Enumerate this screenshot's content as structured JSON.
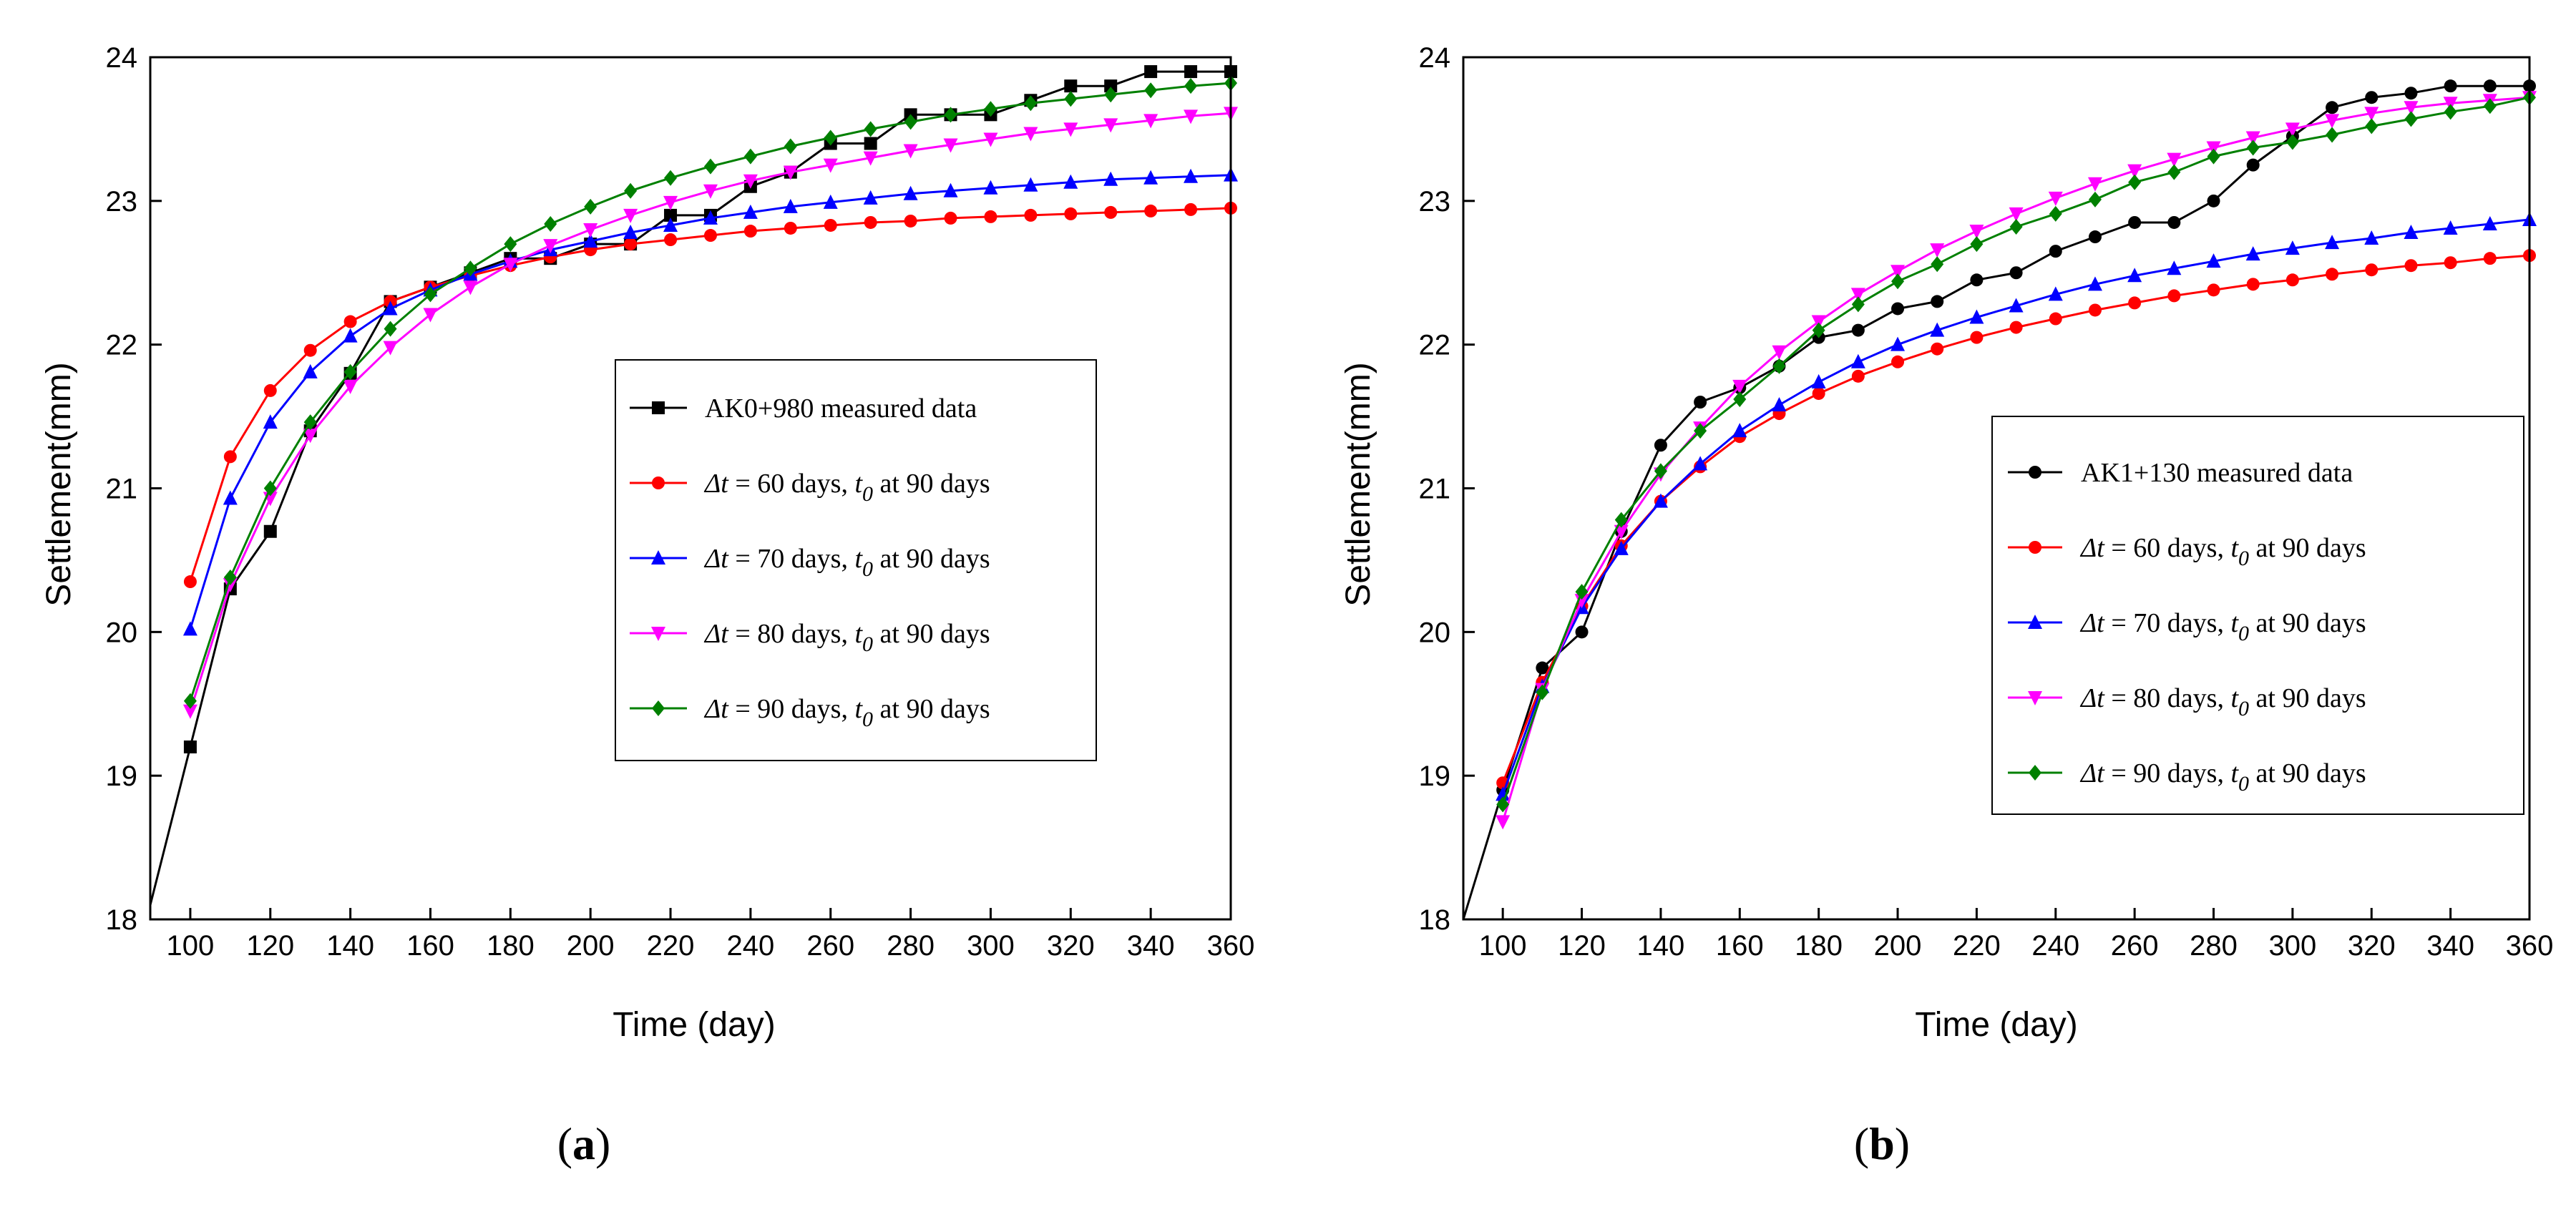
{
  "colors": {
    "measured": "#000000",
    "dt60": "#ff0000",
    "dt70": "#0000ff",
    "dt80": "#ff00ff",
    "dt90": "#008000"
  },
  "chart_data": [
    {
      "type": "line",
      "panel_label": "a",
      "xlabel": "Time (day)",
      "ylabel": "Settlement(mm)",
      "xlim": [
        90,
        360
      ],
      "ylim": [
        18,
        24
      ],
      "xticks": [
        100,
        120,
        140,
        160,
        180,
        200,
        220,
        240,
        260,
        280,
        300,
        320,
        340,
        360
      ],
      "yticks": [
        18,
        19,
        20,
        21,
        22,
        23,
        24
      ],
      "legend": {
        "placement": "center-right",
        "entries": [
          {
            "key": "measured",
            "prefix": "",
            "text": "AK0+980 measured data"
          },
          {
            "key": "dt60",
            "prefix": "Δt",
            "text": " = 60 days, ",
            "t0": "t",
            "t0sub": "0",
            "tail": " at 90 days"
          },
          {
            "key": "dt70",
            "prefix": "Δt",
            "text": "  = 70 days, ",
            "t0": "t",
            "t0sub": "0",
            "tail": " at 90 days"
          },
          {
            "key": "dt80",
            "prefix": "Δt",
            "text": "  = 80 days, ",
            "t0": "t",
            "t0sub": "0",
            "tail": " at 90 days"
          },
          {
            "key": "dt90",
            "prefix": "Δt",
            "text": "  = 90 days, ",
            "t0": "t",
            "t0sub": "0",
            "tail": " at 90 days"
          }
        ]
      },
      "series": [
        {
          "key": "measured",
          "name": "AK0+980 measured data",
          "marker": "square",
          "x": [
            90,
            100,
            110,
            120,
            130,
            140,
            150,
            160,
            170,
            180,
            190,
            200,
            210,
            220,
            230,
            240,
            250,
            260,
            270,
            280,
            290,
            300,
            310,
            320,
            330,
            340,
            350,
            360
          ],
          "y": [
            18.1,
            19.2,
            20.3,
            20.7,
            21.4,
            21.8,
            22.3,
            22.4,
            22.5,
            22.6,
            22.6,
            22.7,
            22.7,
            22.9,
            22.9,
            23.1,
            23.2,
            23.4,
            23.4,
            23.6,
            23.6,
            23.6,
            23.7,
            23.8,
            23.8,
            23.9,
            23.9,
            23.9
          ],
          "marker_skip_first": true
        },
        {
          "key": "dt60",
          "name": "Δt = 60 days, t0 at 90 days",
          "marker": "circle",
          "x": [
            100,
            110,
            120,
            130,
            140,
            150,
            160,
            170,
            180,
            190,
            200,
            210,
            220,
            230,
            240,
            250,
            260,
            270,
            280,
            290,
            300,
            310,
            320,
            330,
            340,
            350,
            360
          ],
          "y": [
            20.35,
            21.22,
            21.68,
            21.96,
            22.16,
            22.3,
            22.4,
            22.48,
            22.55,
            22.61,
            22.66,
            22.7,
            22.73,
            22.76,
            22.79,
            22.81,
            22.83,
            22.85,
            22.86,
            22.88,
            22.89,
            22.9,
            22.91,
            22.92,
            22.93,
            22.94,
            22.95
          ]
        },
        {
          "key": "dt70",
          "name": "Δt = 70 days, t0 at 90 days",
          "marker": "triangle-up",
          "x": [
            100,
            110,
            120,
            130,
            140,
            150,
            160,
            170,
            180,
            190,
            200,
            210,
            220,
            230,
            240,
            250,
            260,
            270,
            280,
            290,
            300,
            310,
            320,
            330,
            340,
            350,
            360
          ],
          "y": [
            20.02,
            20.93,
            21.46,
            21.81,
            22.06,
            22.25,
            22.38,
            22.49,
            22.58,
            22.66,
            22.72,
            22.78,
            22.83,
            22.88,
            22.92,
            22.96,
            22.99,
            23.02,
            23.05,
            23.07,
            23.09,
            23.11,
            23.13,
            23.15,
            23.16,
            23.17,
            23.18
          ]
        },
        {
          "key": "dt80",
          "name": "Δt = 80 days, t0 at 90 days",
          "marker": "triangle-down",
          "x": [
            100,
            110,
            120,
            130,
            140,
            150,
            160,
            170,
            180,
            190,
            200,
            210,
            220,
            230,
            240,
            250,
            260,
            270,
            280,
            290,
            300,
            310,
            320,
            330,
            340,
            350,
            360
          ],
          "y": [
            19.45,
            20.33,
            20.93,
            21.37,
            21.71,
            21.98,
            22.21,
            22.4,
            22.56,
            22.69,
            22.8,
            22.9,
            22.99,
            23.07,
            23.14,
            23.2,
            23.25,
            23.3,
            23.35,
            23.39,
            23.43,
            23.47,
            23.5,
            23.53,
            23.56,
            23.59,
            23.61
          ]
        },
        {
          "key": "dt90",
          "name": "Δt = 90 days, t0 at 90 days",
          "marker": "diamond",
          "x": [
            100,
            110,
            120,
            130,
            140,
            150,
            160,
            170,
            180,
            190,
            200,
            210,
            220,
            230,
            240,
            250,
            260,
            270,
            280,
            290,
            300,
            310,
            320,
            330,
            340,
            350,
            360
          ],
          "y": [
            19.52,
            20.38,
            21.0,
            21.46,
            21.81,
            22.11,
            22.35,
            22.53,
            22.7,
            22.84,
            22.96,
            23.07,
            23.16,
            23.24,
            23.31,
            23.38,
            23.44,
            23.5,
            23.55,
            23.6,
            23.64,
            23.68,
            23.71,
            23.74,
            23.77,
            23.8,
            23.82
          ]
        }
      ]
    },
    {
      "type": "line",
      "panel_label": "b",
      "xlabel": "Time (day)",
      "ylabel": "Settlement(mm)",
      "xlim": [
        90,
        360
      ],
      "ylim": [
        18,
        24
      ],
      "xticks": [
        100,
        120,
        140,
        160,
        180,
        200,
        220,
        240,
        260,
        280,
        300,
        320,
        340,
        360
      ],
      "yticks": [
        18,
        19,
        20,
        21,
        22,
        23,
        24
      ],
      "legend": {
        "placement": "center-right",
        "entries": [
          {
            "key": "measured",
            "prefix": "",
            "text": "AK1+130 measured data"
          },
          {
            "key": "dt60",
            "prefix": "Δt",
            "text": " = 60 days, ",
            "t0": "t",
            "t0sub": "0",
            "tail": " at 90 days"
          },
          {
            "key": "dt70",
            "prefix": "Δt",
            "text": "  = 70 days, ",
            "t0": "t",
            "t0sub": "0",
            "tail": " at 90 days"
          },
          {
            "key": "dt80",
            "prefix": "Δt",
            "text": "  = 80 days, ",
            "t0": "t",
            "t0sub": "0",
            "tail": " at 90 days"
          },
          {
            "key": "dt90",
            "prefix": "Δt",
            "text": "  = 90 days, ",
            "t0": "t",
            "t0sub": "0",
            "tail": " at 90 days"
          }
        ]
      },
      "series": [
        {
          "key": "measured",
          "name": "AK1+130 measured data",
          "marker": "circle",
          "x": [
            90,
            100,
            110,
            120,
            130,
            140,
            150,
            160,
            170,
            180,
            190,
            200,
            210,
            220,
            230,
            240,
            250,
            260,
            270,
            280,
            290,
            300,
            310,
            320,
            330,
            340,
            350,
            360
          ],
          "y": [
            18.0,
            18.9,
            19.75,
            20.0,
            20.7,
            21.3,
            21.6,
            21.7,
            21.85,
            22.05,
            22.1,
            22.25,
            22.3,
            22.45,
            22.5,
            22.65,
            22.75,
            22.85,
            22.85,
            23.0,
            23.25,
            23.45,
            23.65,
            23.72,
            23.75,
            23.8,
            23.8,
            23.8
          ],
          "marker_skip_first": true
        },
        {
          "key": "dt60",
          "name": "Δt = 60 days, t0 at 90 days",
          "marker": "circle",
          "x": [
            100,
            110,
            120,
            130,
            140,
            150,
            160,
            170,
            180,
            190,
            200,
            210,
            220,
            230,
            240,
            250,
            260,
            270,
            280,
            290,
            300,
            310,
            320,
            330,
            340,
            350,
            360
          ],
          "y": [
            18.95,
            19.65,
            20.18,
            20.6,
            20.91,
            21.15,
            21.36,
            21.52,
            21.66,
            21.78,
            21.88,
            21.97,
            22.05,
            22.12,
            22.18,
            22.24,
            22.29,
            22.34,
            22.38,
            22.42,
            22.45,
            22.49,
            22.52,
            22.55,
            22.57,
            22.6,
            22.62
          ]
        },
        {
          "key": "dt70",
          "name": "Δt = 70 days, t0 at 90 days",
          "marker": "triangle-up",
          "x": [
            100,
            110,
            120,
            130,
            140,
            150,
            160,
            170,
            180,
            190,
            200,
            210,
            220,
            230,
            240,
            250,
            260,
            270,
            280,
            290,
            300,
            310,
            320,
            330,
            340,
            350,
            360
          ],
          "y": [
            18.87,
            19.62,
            20.17,
            20.58,
            20.91,
            21.17,
            21.4,
            21.58,
            21.74,
            21.88,
            22.0,
            22.1,
            22.19,
            22.27,
            22.35,
            22.42,
            22.48,
            22.53,
            22.58,
            22.63,
            22.67,
            22.71,
            22.74,
            22.78,
            22.81,
            22.84,
            22.87
          ]
        },
        {
          "key": "dt80",
          "name": "Δt = 80 days, t0 at 90 days",
          "marker": "triangle-down",
          "x": [
            100,
            110,
            120,
            130,
            140,
            150,
            160,
            170,
            180,
            190,
            200,
            210,
            220,
            230,
            240,
            250,
            260,
            270,
            280,
            290,
            300,
            310,
            320,
            330,
            340,
            350,
            360
          ],
          "y": [
            18.68,
            19.6,
            20.22,
            20.7,
            21.1,
            21.42,
            21.71,
            21.95,
            22.16,
            22.35,
            22.51,
            22.66,
            22.79,
            22.91,
            23.02,
            23.12,
            23.21,
            23.29,
            23.37,
            23.44,
            23.5,
            23.56,
            23.61,
            23.65,
            23.68,
            23.7,
            23.72
          ]
        },
        {
          "key": "dt90",
          "name": "Δt = 90 days, t0 at 90 days",
          "marker": "diamond",
          "x": [
            100,
            110,
            120,
            130,
            140,
            150,
            160,
            170,
            180,
            190,
            200,
            210,
            220,
            230,
            240,
            250,
            260,
            270,
            280,
            290,
            300,
            310,
            320,
            330,
            340,
            350,
            360
          ],
          "y": [
            18.8,
            19.58,
            20.28,
            20.78,
            21.12,
            21.4,
            21.62,
            21.85,
            22.1,
            22.28,
            22.44,
            22.56,
            22.7,
            22.82,
            22.91,
            23.01,
            23.13,
            23.2,
            23.31,
            23.37,
            23.41,
            23.46,
            23.52,
            23.57,
            23.62,
            23.66,
            23.72
          ]
        }
      ]
    }
  ]
}
